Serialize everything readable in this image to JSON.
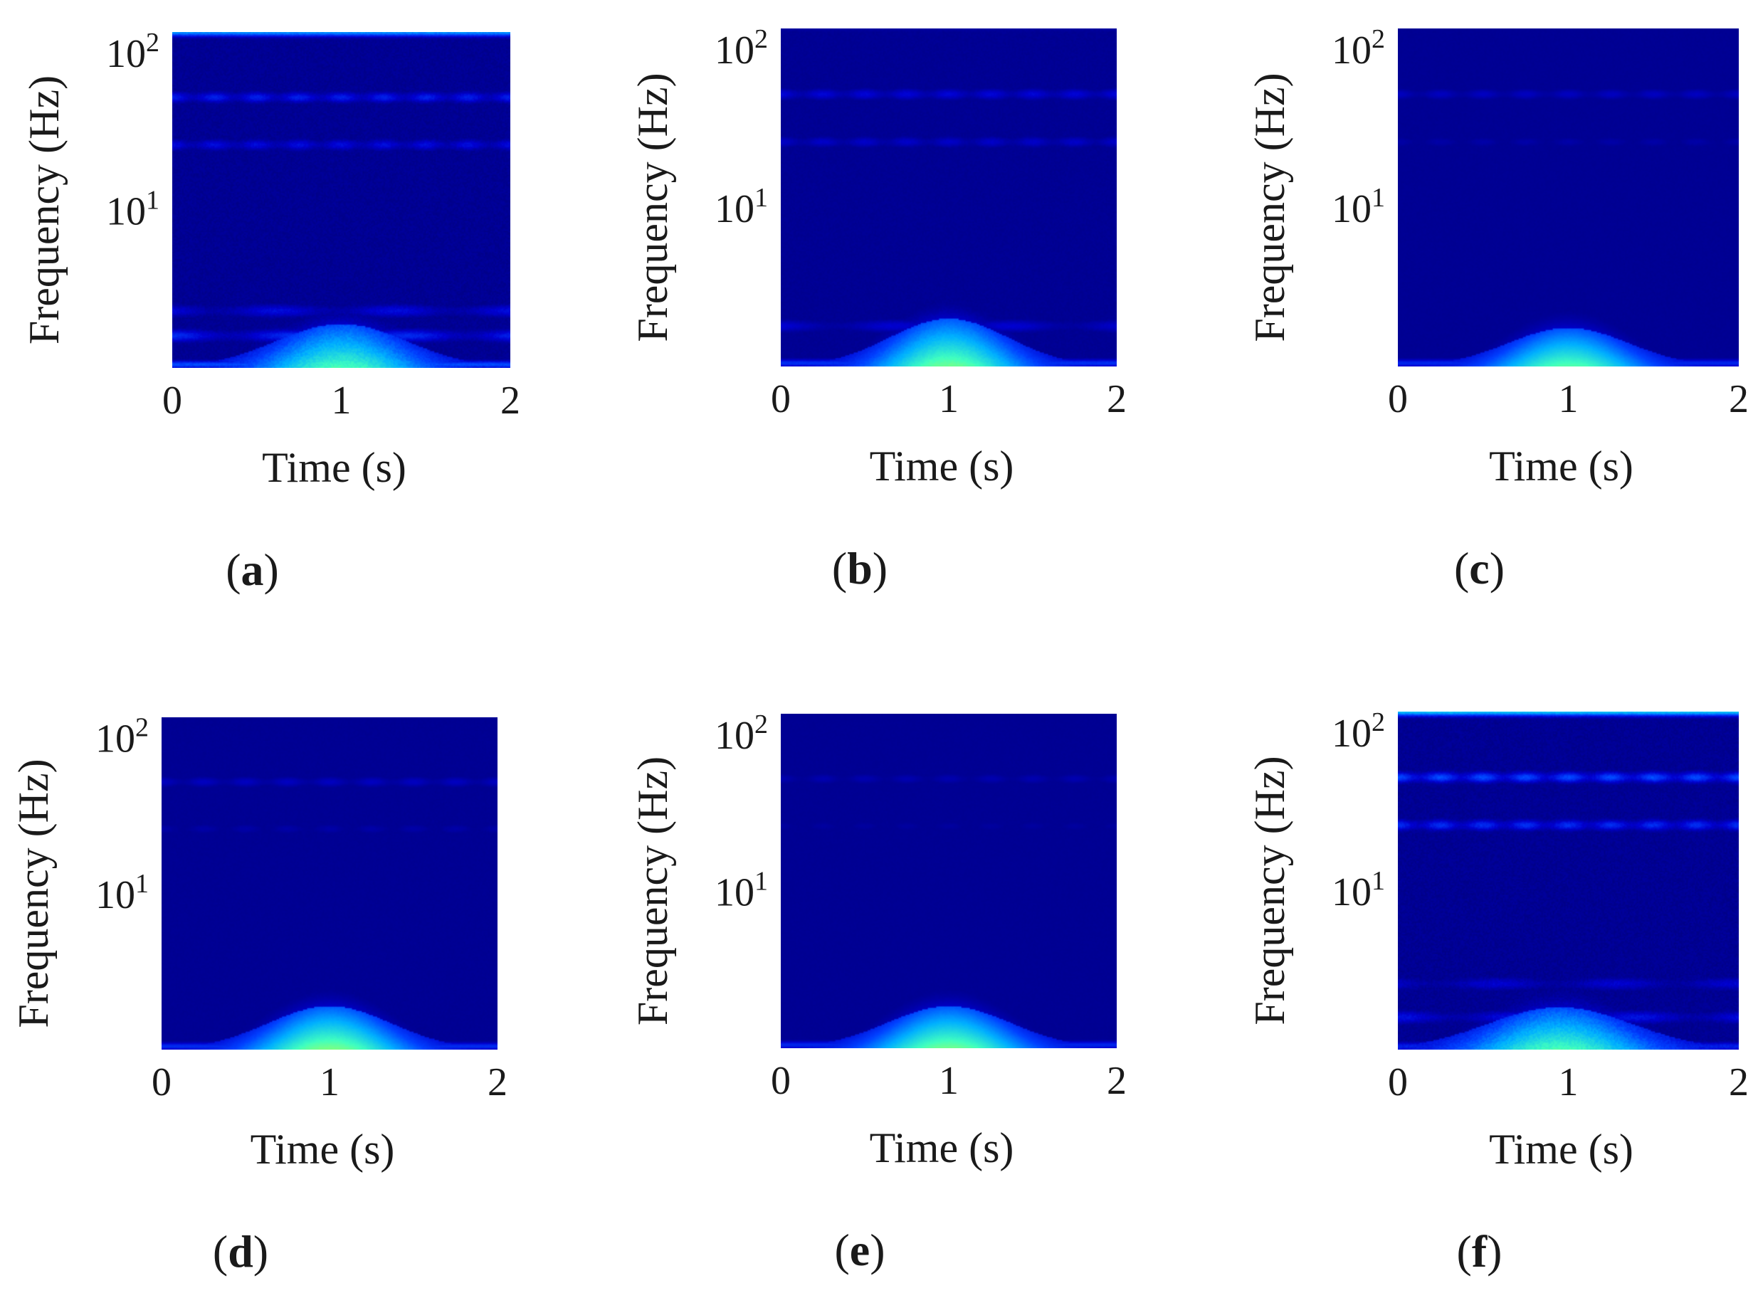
{
  "chart_data": [
    {
      "id": "a",
      "type": "heatmap",
      "caption_letter": "a",
      "xlabel": "Time (s)",
      "ylabel": "Frequency (Hz)",
      "xlim": [
        0,
        2
      ],
      "y_scale": "log",
      "ylim": [
        1,
        135
      ],
      "xticks": [
        "0",
        "1",
        "2"
      ],
      "yticks": [
        {
          "base": "10",
          "exp": "2",
          "value": 100
        },
        {
          "base": "10",
          "exp": "1",
          "value": 10
        }
      ],
      "noise": 0.9,
      "energy": {
        "hump": {
          "center_time": 1.0,
          "width_time": 0.55,
          "top_freq": 1.9,
          "peak": 0.62
        },
        "baseline_band": {
          "freq": 1.05,
          "level": 0.42
        },
        "side_bands": [
          {
            "freq": 1.6,
            "level": 0.33
          },
          {
            "freq": 2.3,
            "level": 0.24
          }
        ],
        "harmonic_bands": [
          {
            "freq": 52,
            "level": 0.3
          },
          {
            "freq": 26,
            "level": 0.24
          }
        ],
        "top_edge_level": 0.55
      }
    },
    {
      "id": "b",
      "type": "heatmap",
      "caption_letter": "b",
      "xlabel": "Time (s)",
      "ylabel": "Frequency (Hz)",
      "xlim": [
        0,
        2
      ],
      "y_scale": "log",
      "ylim": [
        1,
        135
      ],
      "xticks": [
        "0",
        "1",
        "2"
      ],
      "yticks": [
        {
          "base": "10",
          "exp": "2",
          "value": 100
        },
        {
          "base": "10",
          "exp": "1",
          "value": 10
        }
      ],
      "noise": 0.45,
      "energy": {
        "hump": {
          "center_time": 1.0,
          "width_time": 0.5,
          "top_freq": 2.0,
          "peak": 0.68
        },
        "baseline_band": {
          "freq": 1.05,
          "level": 0.35
        },
        "side_bands": [
          {
            "freq": 1.8,
            "level": 0.2
          }
        ],
        "harmonic_bands": [
          {
            "freq": 52,
            "level": 0.22
          },
          {
            "freq": 26,
            "level": 0.18
          }
        ],
        "top_edge_level": 0.08
      }
    },
    {
      "id": "c",
      "type": "heatmap",
      "caption_letter": "c",
      "xlabel": "Time (s)",
      "ylabel": "Frequency (Hz)",
      "xlim": [
        0,
        2
      ],
      "y_scale": "log",
      "ylim": [
        1,
        135
      ],
      "xticks": [
        "0",
        "1",
        "2"
      ],
      "yticks": [
        {
          "base": "10",
          "exp": "2",
          "value": 100
        },
        {
          "base": "10",
          "exp": "1",
          "value": 10
        }
      ],
      "noise": 0.25,
      "energy": {
        "hump": {
          "center_time": 1.0,
          "width_time": 0.5,
          "top_freq": 1.75,
          "peak": 0.64
        },
        "baseline_band": {
          "freq": 1.05,
          "level": 0.32
        },
        "side_bands": [],
        "harmonic_bands": [
          {
            "freq": 52,
            "level": 0.16
          },
          {
            "freq": 26,
            "level": 0.1
          }
        ],
        "top_edge_level": 0.05
      }
    },
    {
      "id": "d",
      "type": "heatmap",
      "caption_letter": "d",
      "xlabel": "Time (s)",
      "ylabel": "Frequency (Hz)",
      "xlim": [
        0,
        2
      ],
      "y_scale": "log",
      "ylim": [
        1,
        135
      ],
      "xticks": [
        "0",
        "1",
        "2"
      ],
      "yticks": [
        {
          "base": "10",
          "exp": "2",
          "value": 100
        },
        {
          "base": "10",
          "exp": "1",
          "value": 10
        }
      ],
      "noise": 0.25,
      "energy": {
        "hump": {
          "center_time": 1.0,
          "width_time": 0.52,
          "top_freq": 1.9,
          "peak": 0.7
        },
        "baseline_band": {
          "freq": 1.05,
          "level": 0.34
        },
        "side_bands": [],
        "harmonic_bands": [
          {
            "freq": 52,
            "level": 0.16
          },
          {
            "freq": 26,
            "level": 0.1
          }
        ],
        "top_edge_level": 0.04
      }
    },
    {
      "id": "e",
      "type": "heatmap",
      "caption_letter": "e",
      "xlabel": "Time (s)",
      "ylabel": "Frequency (Hz)",
      "xlim": [
        0,
        2
      ],
      "y_scale": "log",
      "ylim": [
        1,
        135
      ],
      "xticks": [
        "0",
        "1",
        "2"
      ],
      "yticks": [
        {
          "base": "10",
          "exp": "2",
          "value": 100
        },
        {
          "base": "10",
          "exp": "1",
          "value": 10
        }
      ],
      "noise": 0.2,
      "energy": {
        "hump": {
          "center_time": 1.0,
          "width_time": 0.52,
          "top_freq": 1.85,
          "peak": 0.68
        },
        "baseline_band": {
          "freq": 1.05,
          "level": 0.32
        },
        "side_bands": [],
        "harmonic_bands": [
          {
            "freq": 52,
            "level": 0.12
          },
          {
            "freq": 26,
            "level": 0.08
          }
        ],
        "top_edge_level": 0.03
      }
    },
    {
      "id": "f",
      "type": "heatmap",
      "caption_letter": "f",
      "xlabel": "Time (s)",
      "ylabel": "Frequency (Hz)",
      "xlim": [
        0,
        2
      ],
      "y_scale": "log",
      "ylim": [
        1,
        135
      ],
      "xticks": [
        "0",
        "1",
        "2"
      ],
      "yticks": [
        {
          "base": "10",
          "exp": "2",
          "value": 100
        },
        {
          "base": "10",
          "exp": "1",
          "value": 10
        }
      ],
      "noise": 1.0,
      "energy": {
        "hump": {
          "center_time": 0.95,
          "width_time": 0.6,
          "top_freq": 1.85,
          "peak": 0.62
        },
        "baseline_band": {
          "freq": 1.05,
          "level": 0.3
        },
        "side_bands": [
          {
            "freq": 1.6,
            "level": 0.26
          },
          {
            "freq": 2.6,
            "level": 0.2
          }
        ],
        "harmonic_bands": [
          {
            "freq": 52,
            "level": 0.42
          },
          {
            "freq": 26,
            "level": 0.34
          }
        ],
        "top_edge_level": 0.65
      }
    }
  ],
  "colormap": [
    "#00007f",
    "#0000d0",
    "#0040ff",
    "#00b0ff",
    "#40ffc0",
    "#c0ff40"
  ]
}
